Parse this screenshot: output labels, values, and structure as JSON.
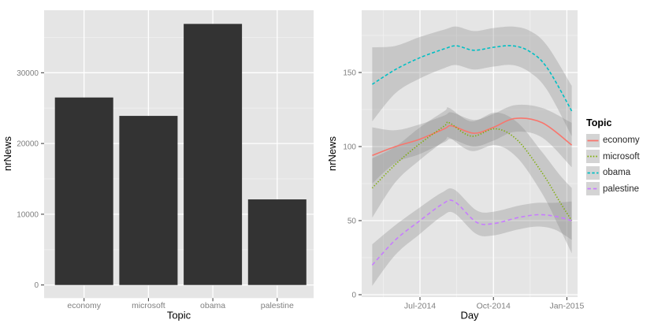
{
  "chart_data": [
    {
      "type": "bar",
      "title": "",
      "xlabel": "Topic",
      "ylabel": "nrNews",
      "categories": [
        "economy",
        "microsoft",
        "obama",
        "palestine"
      ],
      "values": [
        26500,
        23900,
        36900,
        12100
      ],
      "y_ticks": [
        0,
        10000,
        20000,
        30000
      ],
      "y_minor_ticks": [
        5000,
        15000,
        25000,
        35000
      ],
      "ylim": [
        0,
        38800
      ],
      "bar_color": "#333333",
      "grid": "on",
      "legend_position": "none"
    },
    {
      "type": "line",
      "title": "",
      "xlabel": "Day",
      "ylabel": "nrNews",
      "x_tick_labels": [
        "Jul-2014",
        "Oct-2014",
        "Jan-2015"
      ],
      "x_tick_pos": [
        2,
        5,
        8
      ],
      "x_unit": "months since 2014-05-01",
      "xlim": [
        -0.4,
        8.45
      ],
      "y_ticks": [
        0,
        50,
        100,
        150
      ],
      "y_minor_ticks": [
        25,
        75,
        125,
        175
      ],
      "ylim": [
        0,
        192
      ],
      "grid": "on",
      "legend_title": "Topic",
      "legend_position": "right",
      "ribbon_note": "gray smoothing confidence bands around each line",
      "series": [
        {
          "name": "economy",
          "color": "#F8766D",
          "linetype": "solid",
          "x": [
            0.05,
            1,
            2,
            3,
            3.3,
            4.2,
            5,
            5.9,
            7,
            8.2
          ],
          "y": [
            94,
            100,
            105,
            112,
            114,
            109,
            113,
            119,
            116,
            101
          ],
          "upper": [
            113,
            111,
            115,
            121,
            123,
            118,
            122,
            128,
            126,
            116
          ],
          "lower": [
            75,
            89,
            95,
            103,
            105,
            100,
            104,
            110,
            106,
            86
          ]
        },
        {
          "name": "microsoft",
          "color": "#7CAE00",
          "linetype": "dotted",
          "x": [
            0.05,
            1,
            2,
            3,
            3.2,
            4.1,
            5.1,
            6,
            7,
            7.7,
            8.2
          ],
          "y": [
            72,
            88,
            102,
            114,
            116,
            107,
            112,
            104,
            82,
            63,
            50
          ],
          "upper": [
            92,
            100,
            113,
            124,
            126,
            117,
            123,
            116,
            96,
            81,
            72
          ],
          "lower": [
            52,
            76,
            91,
            104,
            106,
            97,
            101,
            92,
            68,
            45,
            28
          ]
        },
        {
          "name": "obama",
          "color": "#00BFC4",
          "linetype": "dashed",
          "x": [
            0.05,
            1,
            2,
            3,
            3.5,
            4.2,
            5,
            5.8,
            6.5,
            7.2,
            8.2
          ],
          "y": [
            142,
            152,
            160,
            166,
            168,
            165,
            167,
            168,
            164,
            153,
            124
          ],
          "upper": [
            167,
            168,
            174,
            179,
            181,
            178,
            180,
            181,
            178,
            168,
            141
          ],
          "lower": [
            117,
            136,
            146,
            153,
            155,
            152,
            154,
            155,
            150,
            138,
            107
          ]
        },
        {
          "name": "palestine",
          "color": "#C77CFF",
          "linetype": "longdash",
          "x": [
            0.05,
            1,
            2,
            2.9,
            3.4,
            4.3,
            5,
            6,
            6.8,
            7.5,
            8.2
          ],
          "y": [
            20,
            37,
            50,
            61,
            63,
            49,
            48,
            52,
            54,
            53,
            50
          ],
          "upper": [
            34,
            47,
            59,
            69,
            71,
            57,
            56,
            60,
            62,
            62,
            63
          ],
          "lower": [
            6,
            27,
            41,
            53,
            55,
            41,
            40,
            44,
            46,
            44,
            37
          ]
        }
      ]
    }
  ],
  "style": {
    "panel_bg": "#e5e5e5",
    "grid_major": "#ffffff",
    "grid_minor": "#f1f1f1",
    "tick_label_color": "#7f7f7f",
    "axis_title_color": "#000000",
    "tick_mark_color": "#333333",
    "ribbon_fill": "rgba(128,128,128,0.30)",
    "legend_key_bg": "#d4d4d4"
  }
}
